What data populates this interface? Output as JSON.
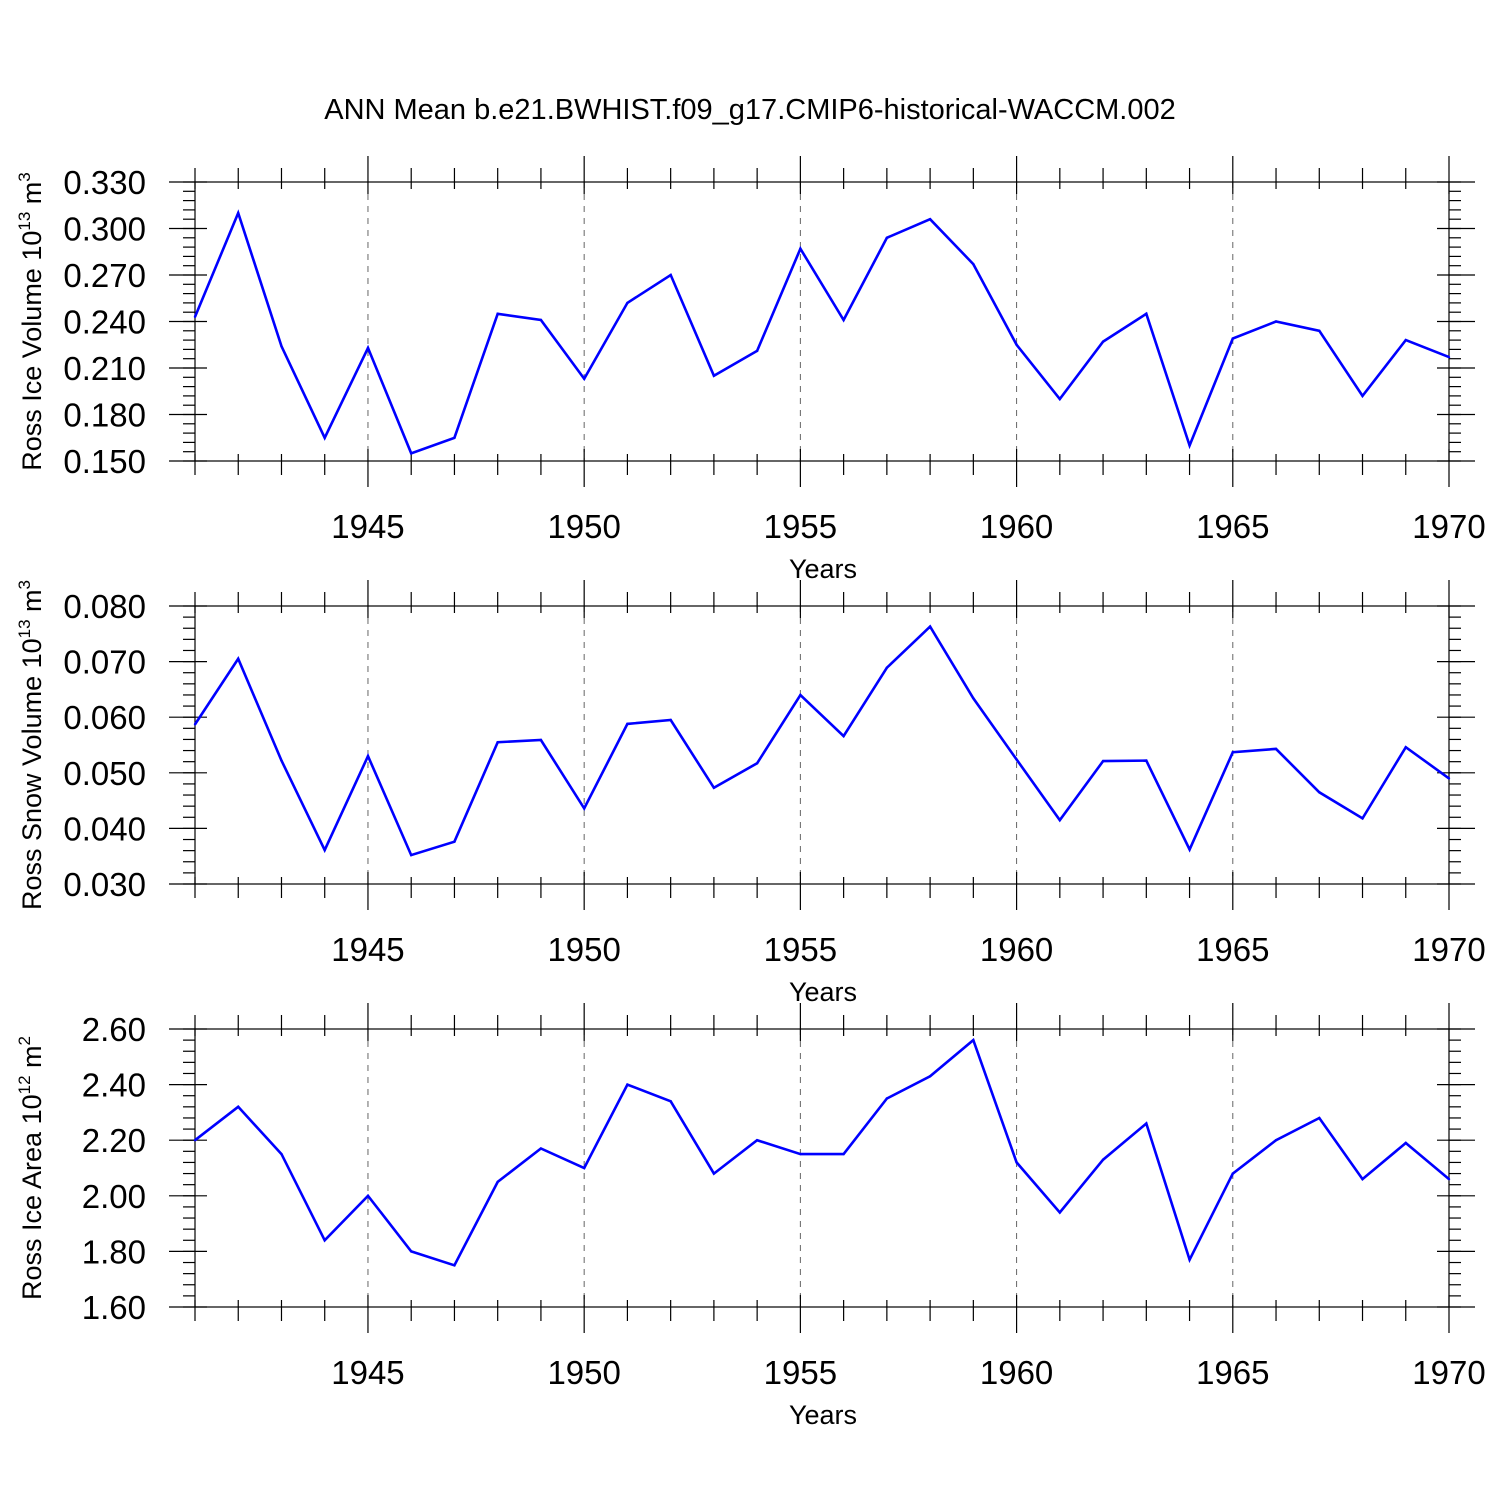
{
  "title": "ANN Mean b.e21.BWHIST.f09_g17.CMIP6-historical-WACCM.002",
  "colors": {
    "line": "#0000ff",
    "grid": "#666666",
    "axis": "#000000"
  },
  "chart_data": [
    {
      "type": "line",
      "ylabel": "Ross Ice Volume 10",
      "ylabel_exp": "13",
      "ylabel_unit": " m",
      "ylabel_unit_exp": "3",
      "xlabel": "Years",
      "xlim": [
        1941,
        1970
      ],
      "ylim": [
        0.15,
        0.33
      ],
      "yticks": [
        "0.150",
        "0.180",
        "0.210",
        "0.240",
        "0.270",
        "0.300",
        "0.330"
      ],
      "yminor_step": 0.006,
      "xticks": [
        "1945",
        "1950",
        "1955",
        "1960",
        "1965",
        "1970"
      ],
      "grid": "dashed vertical lines at major x ticks",
      "x": [
        1941,
        1942,
        1943,
        1944,
        1945,
        1946,
        1947,
        1948,
        1949,
        1950,
        1951,
        1952,
        1953,
        1954,
        1955,
        1956,
        1957,
        1958,
        1959,
        1960,
        1961,
        1962,
        1963,
        1964,
        1965,
        1966,
        1967,
        1968,
        1969,
        1970
      ],
      "y": [
        0.243,
        0.31,
        0.224,
        0.165,
        0.223,
        0.155,
        0.165,
        0.245,
        0.241,
        0.203,
        0.252,
        0.27,
        0.205,
        0.221,
        0.287,
        0.241,
        0.294,
        0.306,
        0.277,
        0.225,
        0.19,
        0.227,
        0.245,
        0.16,
        0.229,
        0.24,
        0.234,
        0.192,
        0.228,
        0.217
      ]
    },
    {
      "type": "line",
      "ylabel": "Ross Snow Volume 10",
      "ylabel_exp": "13",
      "ylabel_unit": " m",
      "ylabel_unit_exp": "3",
      "xlabel": "Years",
      "xlim": [
        1941,
        1970
      ],
      "ylim": [
        0.03,
        0.08
      ],
      "yticks": [
        "0.030",
        "0.040",
        "0.050",
        "0.060",
        "0.070",
        "0.080"
      ],
      "yminor_step": 0.002,
      "xticks": [
        "1945",
        "1950",
        "1955",
        "1960",
        "1965",
        "1970"
      ],
      "grid": "dashed vertical lines at major x ticks",
      "x": [
        1941,
        1942,
        1943,
        1944,
        1945,
        1946,
        1947,
        1948,
        1949,
        1950,
        1951,
        1952,
        1953,
        1954,
        1955,
        1956,
        1957,
        1958,
        1959,
        1960,
        1961,
        1962,
        1963,
        1964,
        1965,
        1966,
        1967,
        1968,
        1969,
        1970
      ],
      "y": [
        0.0587,
        0.0705,
        0.0522,
        0.0361,
        0.053,
        0.0352,
        0.0376,
        0.0555,
        0.0559,
        0.0436,
        0.0588,
        0.0595,
        0.0473,
        0.0517,
        0.064,
        0.0566,
        0.0689,
        0.0763,
        0.0634,
        0.0524,
        0.0415,
        0.0521,
        0.0522,
        0.0362,
        0.0537,
        0.0543,
        0.0465,
        0.0418,
        0.0546,
        0.049
      ]
    },
    {
      "type": "line",
      "ylabel": "Ross Ice Area 10",
      "ylabel_exp": "12",
      "ylabel_unit": " m",
      "ylabel_unit_exp": "2",
      "xlabel": "Years",
      "xlim": [
        1941,
        1970
      ],
      "ylim": [
        1.6,
        2.6
      ],
      "yticks": [
        "1.60",
        "1.80",
        "2.00",
        "2.20",
        "2.40",
        "2.60"
      ],
      "yminor_step": 0.04,
      "xticks": [
        "1945",
        "1950",
        "1955",
        "1960",
        "1965",
        "1970"
      ],
      "grid": "dashed vertical lines at major x ticks",
      "x": [
        1941,
        1942,
        1943,
        1944,
        1945,
        1946,
        1947,
        1948,
        1949,
        1950,
        1951,
        1952,
        1953,
        1954,
        1955,
        1956,
        1957,
        1958,
        1959,
        1960,
        1961,
        1962,
        1963,
        1964,
        1965,
        1966,
        1967,
        1968,
        1969,
        1970
      ],
      "y": [
        2.2,
        2.32,
        2.15,
        1.84,
        2.0,
        1.8,
        1.75,
        2.05,
        2.17,
        2.1,
        2.4,
        2.34,
        2.08,
        2.2,
        2.15,
        2.15,
        2.35,
        2.43,
        2.56,
        2.12,
        1.94,
        2.13,
        2.26,
        1.77,
        2.08,
        2.2,
        2.28,
        2.06,
        2.19,
        2.06
      ]
    }
  ]
}
